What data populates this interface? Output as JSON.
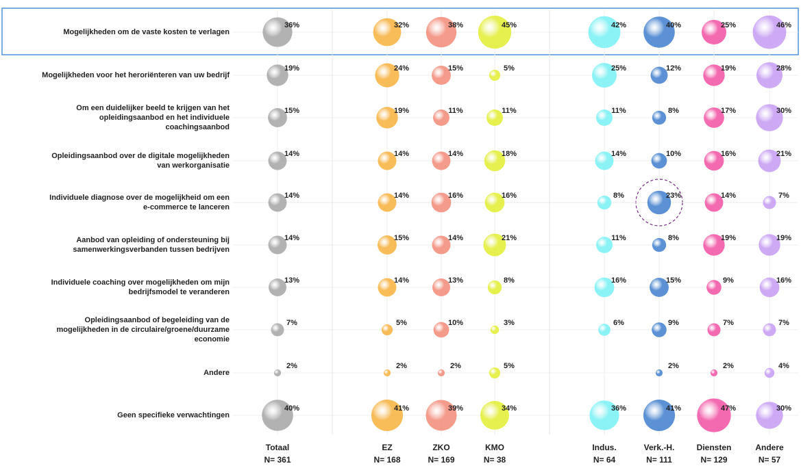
{
  "chart_data": {
    "type": "bubble",
    "categories": [
      "Mogelijkheden om de vaste kosten te verlagen",
      "Mogelijkheden voor het heroriënteren van uw bedrijf",
      "Om een duidelijker beeld te krijgen van het opleidingsaanbod en het individuele coachingsaanbod",
      "Opleidingsaanbod over de digitale mogelijkheden van werkorganisatie",
      "Individuele diagnose over de mogelijkheid om een e-commerce te lanceren",
      "Aanbod van opleiding of ondersteuning bij samenwerkingsverbanden tussen bedrijven",
      "Individuele coaching over mogelijkheden om mijn bedrijfsmodel te veranderen",
      "Opleidingsaanbod of begeleiding van de mogelijkheden in de circulaire/groene/duurzame economie",
      "Andere",
      "Geen specifieke verwachtingen"
    ],
    "series": [
      {
        "name": "Totaal",
        "n": "N= 361",
        "color": "#a9a9a9",
        "values": [
          36,
          19,
          15,
          14,
          14,
          14,
          13,
          7,
          2,
          40
        ],
        "value_labels": [
          "36%",
          "19%",
          "15%",
          "14%",
          "14%",
          "14%",
          "13%",
          "7%",
          "2%",
          "40%"
        ]
      },
      {
        "name": "EZ",
        "n": "N= 168",
        "color": "#f7b446",
        "values": [
          32,
          24,
          19,
          14,
          14,
          15,
          14,
          5,
          2,
          41
        ],
        "value_labels": [
          "32%",
          "24%",
          "19%",
          "14%",
          "14%",
          "15%",
          "14%",
          "5%",
          "2%",
          "41%"
        ]
      },
      {
        "name": "ZKO",
        "n": "N= 169",
        "color": "#f3907e",
        "values": [
          38,
          15,
          11,
          14,
          16,
          14,
          13,
          10,
          2,
          39
        ],
        "value_labels": [
          "38%",
          "15%",
          "11%",
          "14%",
          "16%",
          "14%",
          "13%",
          "10%",
          "2%",
          "39%"
        ]
      },
      {
        "name": "KMO",
        "n": "N= 38",
        "color": "#e3ee3a",
        "values": [
          45,
          5,
          11,
          18,
          16,
          21,
          8,
          3,
          5,
          34
        ],
        "value_labels": [
          "45%",
          "5%",
          "11%",
          "18%",
          "16%",
          "21%",
          "8%",
          "3%",
          "5%",
          "34%"
        ]
      },
      {
        "name": "Indus.",
        "n": "N= 64",
        "color": "#7ef1f4",
        "values": [
          42,
          25,
          11,
          14,
          8,
          11,
          16,
          6,
          null,
          36
        ],
        "value_labels": [
          "42%",
          "25%",
          "11%",
          "14%",
          "8%",
          "11%",
          "16%",
          "6%",
          null,
          "36%"
        ]
      },
      {
        "name": "Verk.-H.",
        "n": "N= 111",
        "color": "#4a86d0",
        "values": [
          40,
          12,
          8,
          10,
          23,
          8,
          15,
          9,
          2,
          41
        ],
        "value_labels": [
          "40%",
          "12%",
          "8%",
          "10%",
          "23%",
          "8%",
          "15%",
          "9%",
          "2%",
          "41%"
        ]
      },
      {
        "name": "Diensten",
        "n": "N= 129",
        "color": "#f25aa8",
        "values": [
          25,
          19,
          17,
          16,
          14,
          19,
          9,
          7,
          2,
          47
        ],
        "value_labels": [
          "25%",
          "19%",
          "17%",
          "16%",
          "14%",
          "19%",
          "9%",
          "7%",
          "2%",
          "47%"
        ]
      },
      {
        "name": "Andere",
        "n": "N= 57",
        "color": "#c8a0f4",
        "values": [
          46,
          28,
          30,
          21,
          7,
          19,
          16,
          7,
          4,
          30
        ],
        "value_labels": [
          "46%",
          "28%",
          "30%",
          "21%",
          "7%",
          "19%",
          "16%",
          "7%",
          "4%",
          "30%"
        ]
      }
    ]
  }
}
